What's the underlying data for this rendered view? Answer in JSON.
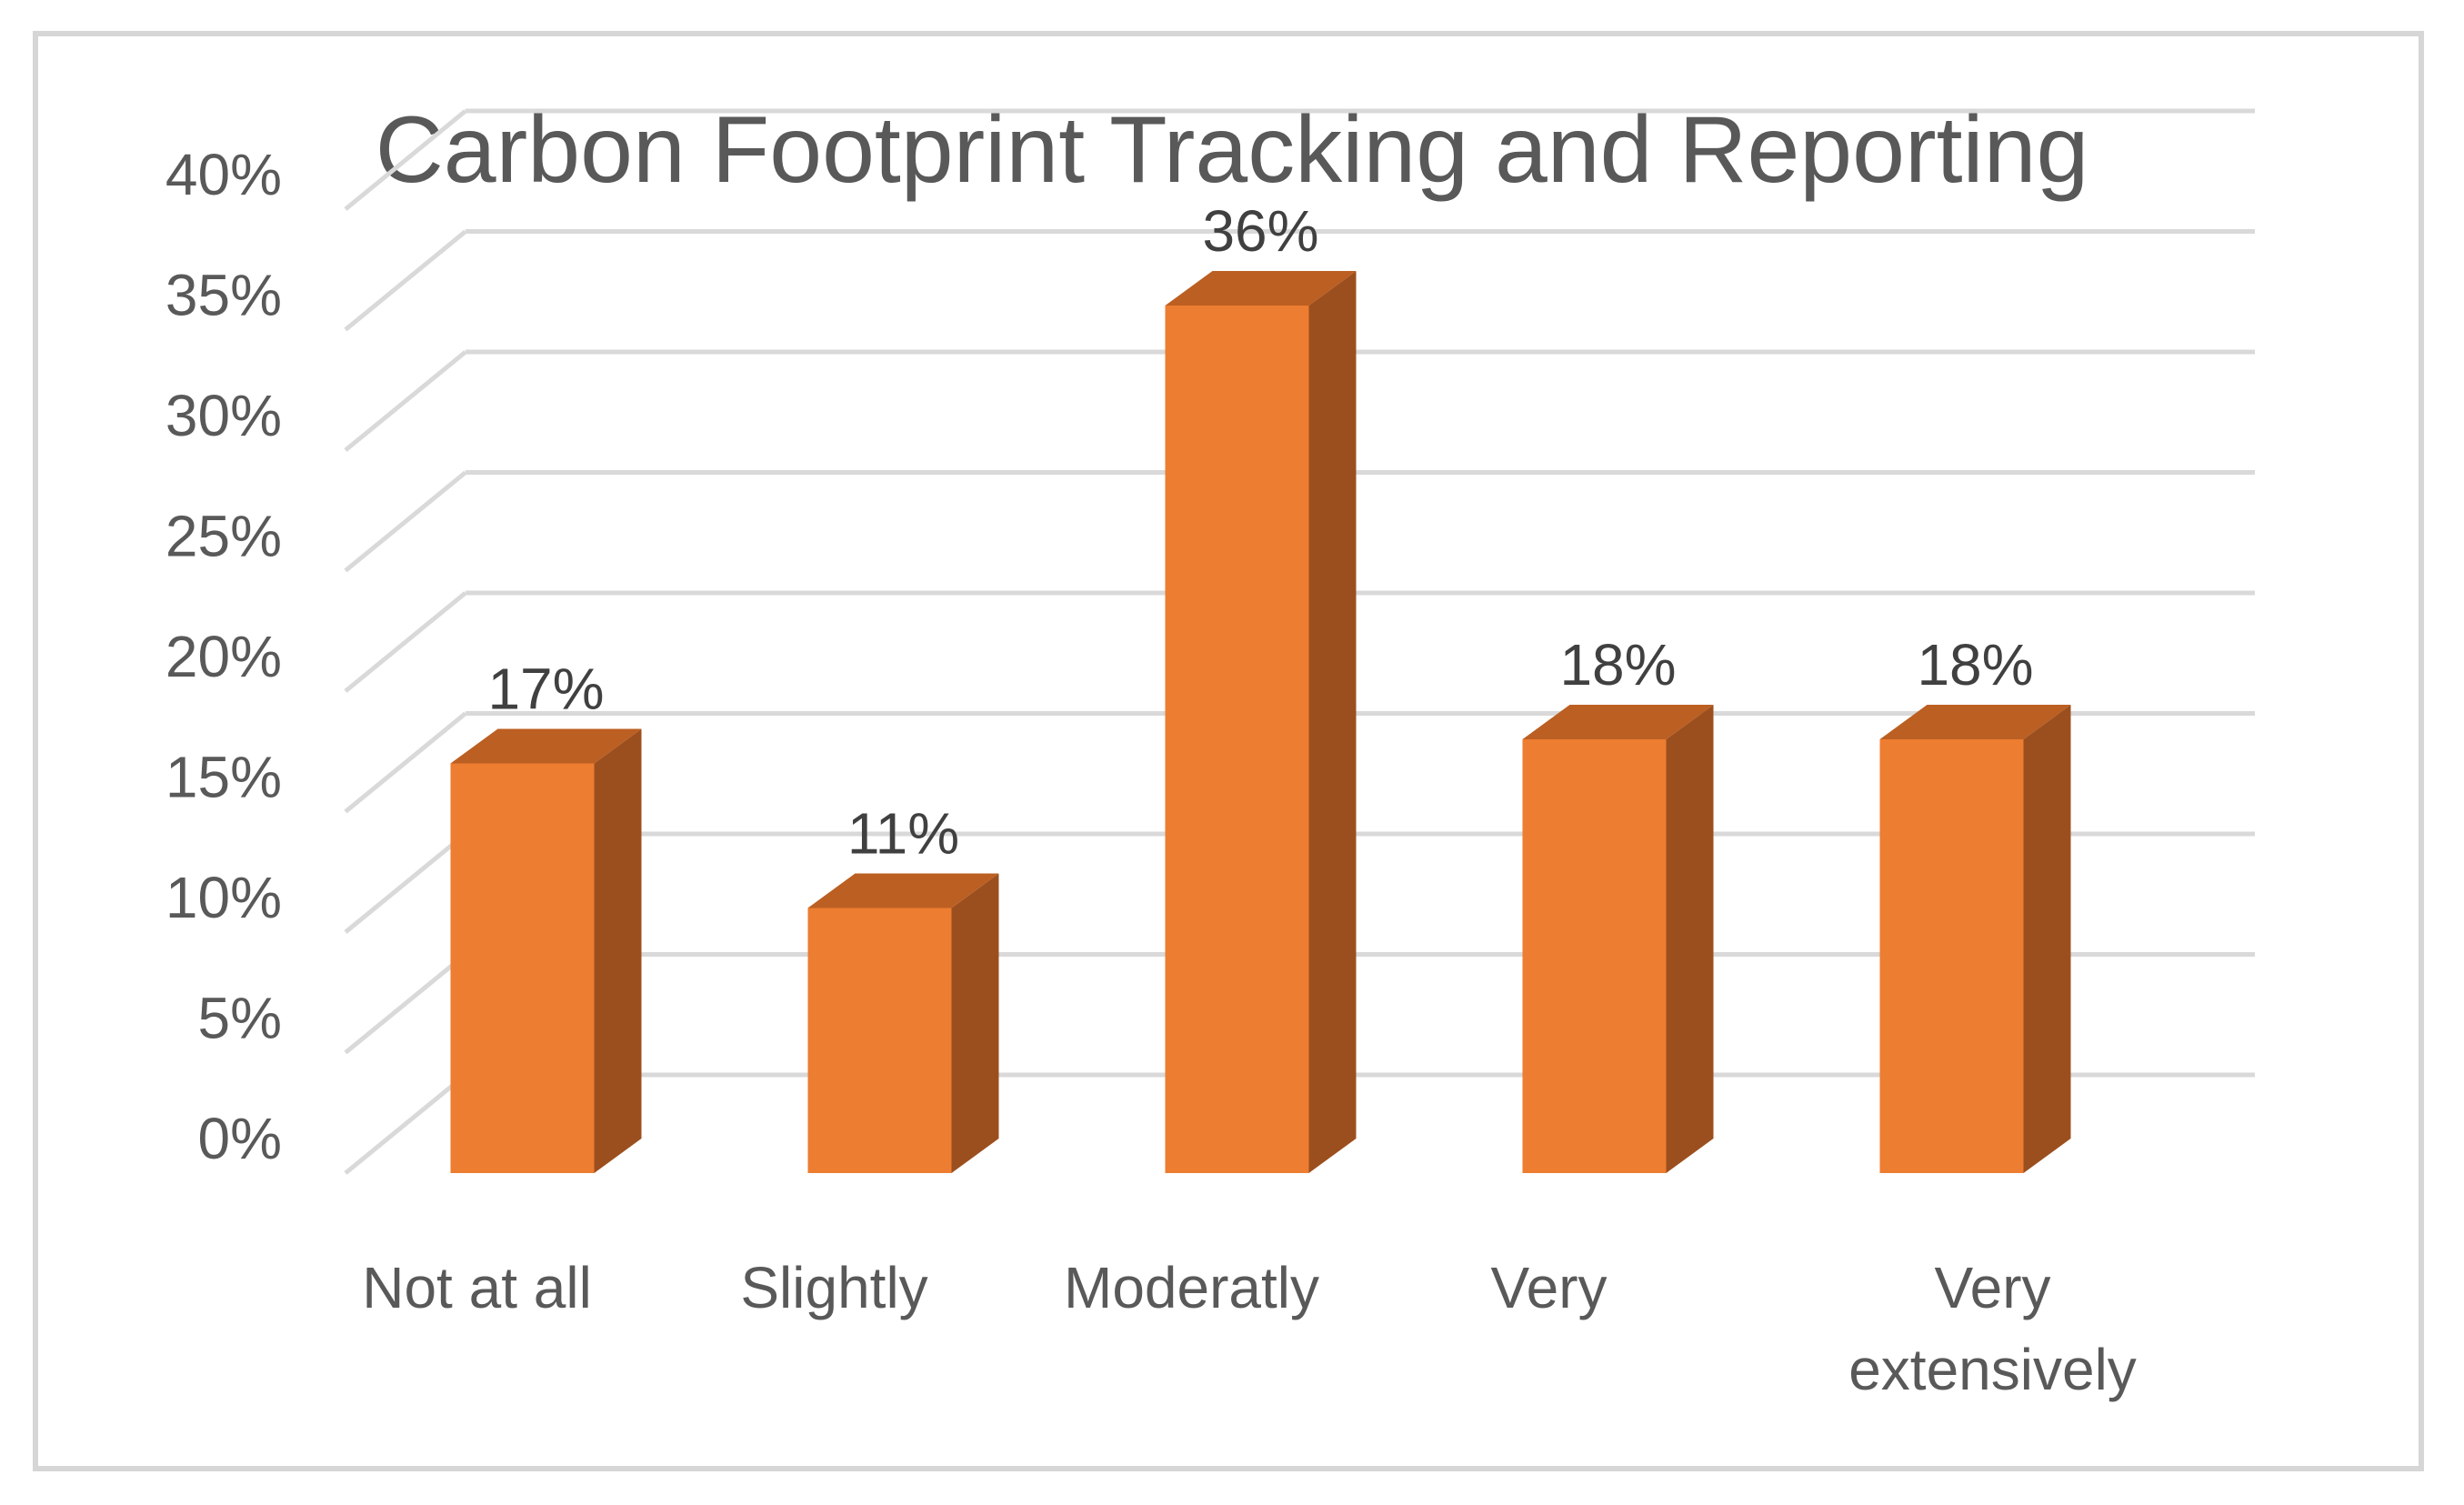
{
  "chart_data": {
    "type": "bar",
    "title": "Carbon Footprint Tracking and Reporting",
    "xlabel": "",
    "ylabel": "",
    "categories": [
      "Not at all",
      "Slightly",
      "Moderatly",
      "Very",
      "Very extensively"
    ],
    "category_lines": [
      [
        "Not at all"
      ],
      [
        "Slightly"
      ],
      [
        "Moderatly"
      ],
      [
        "Very"
      ],
      [
        "Very",
        "extensively"
      ]
    ],
    "values": [
      17,
      11,
      36,
      18,
      18
    ],
    "data_labels": [
      "17%",
      "11%",
      "36%",
      "18%",
      "18%"
    ],
    "ylim": [
      0,
      40
    ],
    "yticks": [
      0,
      5,
      10,
      15,
      20,
      25,
      30,
      35,
      40
    ],
    "ytick_labels": [
      "0%",
      "5%",
      "10%",
      "15%",
      "20%",
      "25%",
      "30%",
      "35%",
      "40%"
    ],
    "grid": true,
    "style": "3d",
    "colors": {
      "bar_front": "#ed7d31",
      "bar_side": "#9c4f1e",
      "bar_top": "#bc5f22",
      "grid": "#d9d9d9",
      "frame": "#d6d6d6"
    }
  }
}
